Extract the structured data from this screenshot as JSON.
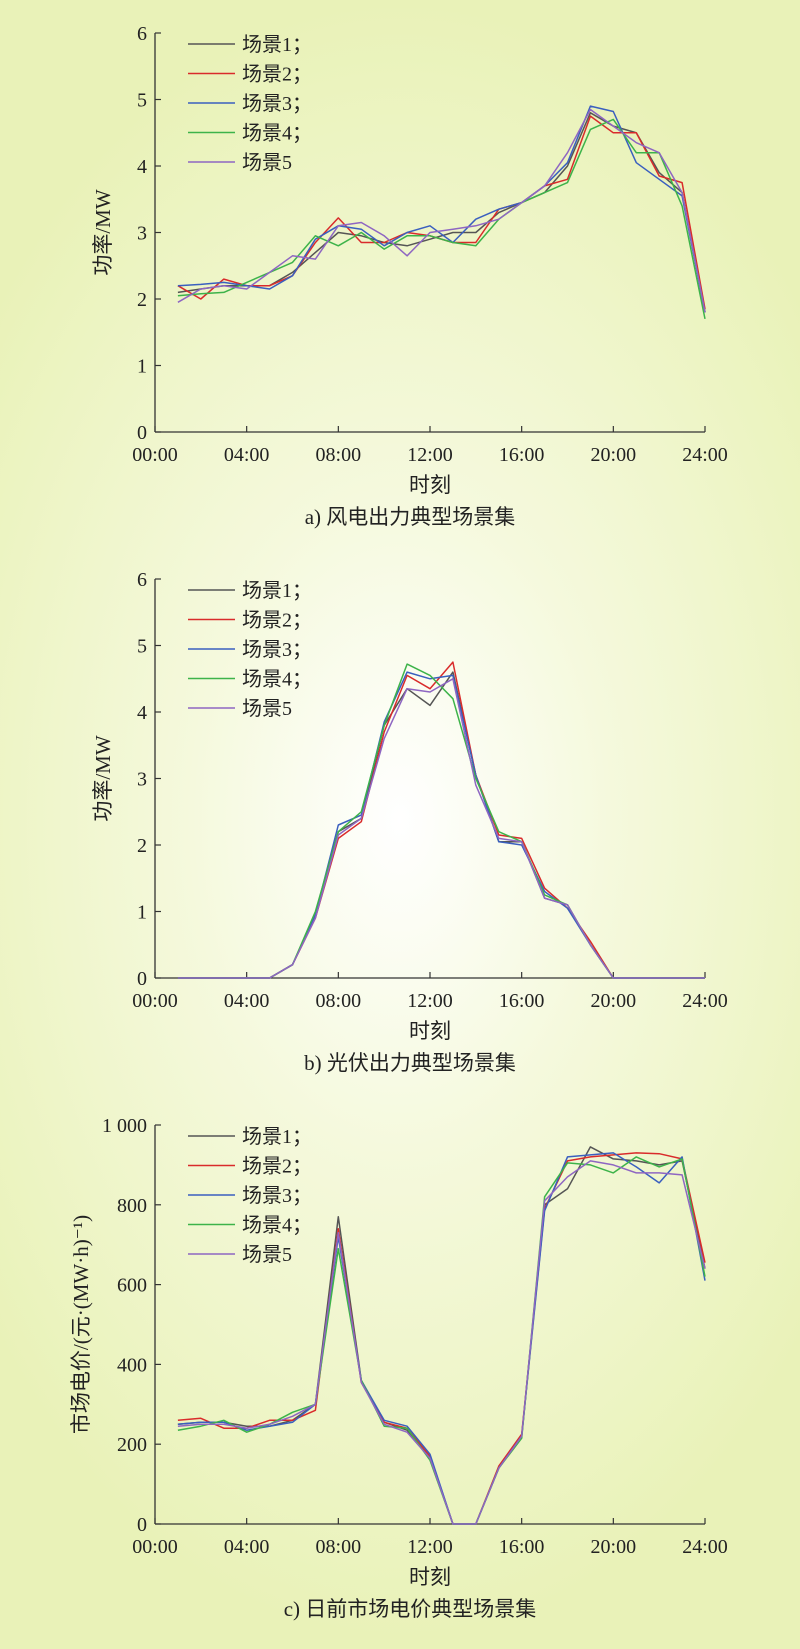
{
  "colors": {
    "series": [
      "#555555",
      "#d92b2b",
      "#3a5fbf",
      "#3db34a",
      "#8e66c2"
    ]
  },
  "chart_data": [
    {
      "type": "line",
      "caption": "a) 风电出力典型场景集",
      "xlabel": "时刻",
      "ylabel": "功率/MW",
      "xlim": [
        0,
        24
      ],
      "ylim": [
        0,
        6
      ],
      "xticks": [
        0,
        4,
        8,
        12,
        16,
        20,
        24
      ],
      "xtick_labels": [
        "00:00",
        "04:00",
        "08:00",
        "12:00",
        "16:00",
        "20:00",
        "24:00"
      ],
      "yticks": [
        0,
        1,
        2,
        3,
        4,
        5,
        6
      ],
      "ytick_labels": [
        "0",
        "1",
        "2",
        "3",
        "4",
        "5",
        "6"
      ],
      "legend_position": "top-left",
      "x": [
        1,
        2,
        3,
        4,
        5,
        6,
        7,
        8,
        9,
        10,
        11,
        12,
        13,
        14,
        15,
        16,
        17,
        18,
        19,
        20,
        21,
        22,
        23,
        24
      ],
      "series": [
        {
          "name": "场景1；",
          "values": [
            2.1,
            2.15,
            2.2,
            2.2,
            2.2,
            2.4,
            2.7,
            3.0,
            2.95,
            2.85,
            2.8,
            2.9,
            3.0,
            3.0,
            3.3,
            3.45,
            3.6,
            4.0,
            4.8,
            4.6,
            4.5,
            3.9,
            3.6,
            1.8
          ]
        },
        {
          "name": "场景2；",
          "values": [
            2.2,
            2.0,
            2.3,
            2.2,
            2.2,
            2.35,
            2.85,
            3.22,
            2.85,
            2.85,
            3.0,
            2.95,
            2.85,
            2.85,
            3.35,
            3.45,
            3.7,
            3.8,
            4.75,
            4.5,
            4.5,
            3.85,
            3.75,
            1.85
          ]
        },
        {
          "name": "场景3；",
          "values": [
            2.2,
            2.22,
            2.25,
            2.2,
            2.15,
            2.35,
            2.9,
            3.1,
            3.05,
            2.8,
            3.0,
            3.1,
            2.85,
            3.2,
            3.35,
            3.45,
            3.7,
            4.05,
            4.9,
            4.82,
            4.05,
            3.8,
            3.55,
            1.8
          ]
        },
        {
          "name": "场景4；",
          "values": [
            2.05,
            2.08,
            2.1,
            2.25,
            2.4,
            2.55,
            2.95,
            2.8,
            3.0,
            2.75,
            2.95,
            2.95,
            2.85,
            2.8,
            3.2,
            3.45,
            3.6,
            3.75,
            4.55,
            4.7,
            4.2,
            4.2,
            3.4,
            1.7
          ]
        },
        {
          "name": "场景5",
          "values": [
            1.95,
            2.15,
            2.2,
            2.15,
            2.4,
            2.65,
            2.6,
            3.1,
            3.15,
            2.95,
            2.65,
            3.0,
            3.05,
            3.1,
            3.2,
            3.45,
            3.7,
            4.2,
            4.85,
            4.6,
            4.35,
            4.2,
            3.6,
            1.8
          ]
        }
      ]
    },
    {
      "type": "line",
      "caption": "b) 光伏出力典型场景集",
      "xlabel": "时刻",
      "ylabel": "功率/MW",
      "xlim": [
        0,
        24
      ],
      "ylim": [
        0,
        6
      ],
      "xticks": [
        0,
        4,
        8,
        12,
        16,
        20,
        24
      ],
      "xtick_labels": [
        "00:00",
        "04:00",
        "08:00",
        "12:00",
        "16:00",
        "20:00",
        "24:00"
      ],
      "yticks": [
        0,
        1,
        2,
        3,
        4,
        5,
        6
      ],
      "ytick_labels": [
        "0",
        "1",
        "2",
        "3",
        "4",
        "5",
        "6"
      ],
      "legend_position": "top-left",
      "x": [
        1,
        2,
        3,
        4,
        5,
        6,
        7,
        8,
        9,
        10,
        11,
        12,
        13,
        14,
        15,
        16,
        17,
        18,
        19,
        20,
        21,
        22,
        23,
        24
      ],
      "series": [
        {
          "name": "场景1；",
          "values": [
            0,
            0,
            0,
            0,
            0,
            0.2,
            0.95,
            2.2,
            2.4,
            3.8,
            4.35,
            4.1,
            4.6,
            3.05,
            2.05,
            2.05,
            1.2,
            1.1,
            0.5,
            0,
            0,
            0,
            0,
            0
          ]
        },
        {
          "name": "场景2；",
          "values": [
            0,
            0,
            0,
            0,
            0,
            0.2,
            0.9,
            2.1,
            2.35,
            3.7,
            4.55,
            4.35,
            4.75,
            3.05,
            2.15,
            2.1,
            1.35,
            1.05,
            0.55,
            0,
            0,
            0,
            0,
            0
          ]
        },
        {
          "name": "场景3；",
          "values": [
            0,
            0,
            0,
            0,
            0,
            0.2,
            0.95,
            2.3,
            2.45,
            3.85,
            4.6,
            4.5,
            4.55,
            3.05,
            2.05,
            2.0,
            1.3,
            1.05,
            0.5,
            0,
            0,
            0,
            0,
            0
          ]
        },
        {
          "name": "场景4；",
          "values": [
            0,
            0,
            0,
            0,
            0,
            0.2,
            1.0,
            2.2,
            2.5,
            3.8,
            4.72,
            4.55,
            4.2,
            3.0,
            2.2,
            2.05,
            1.25,
            1.1,
            0.5,
            0,
            0,
            0,
            0,
            0
          ]
        },
        {
          "name": "场景5",
          "values": [
            0,
            0,
            0,
            0,
            0,
            0.2,
            0.9,
            2.15,
            2.4,
            3.6,
            4.35,
            4.3,
            4.5,
            2.9,
            2.1,
            2.05,
            1.2,
            1.1,
            0.5,
            0,
            0,
            0,
            0,
            0
          ]
        }
      ]
    },
    {
      "type": "line",
      "caption": "c) 日前市场电价典型场景集",
      "xlabel": "时刻",
      "ylabel": "市场电价/(元·(MW·h)⁻¹)",
      "xlim": [
        0,
        24
      ],
      "ylim": [
        0,
        1000
      ],
      "xticks": [
        0,
        4,
        8,
        12,
        16,
        20,
        24
      ],
      "xtick_labels": [
        "00:00",
        "04:00",
        "08:00",
        "12:00",
        "16:00",
        "20:00",
        "24:00"
      ],
      "yticks": [
        0,
        200,
        400,
        600,
        800,
        1000
      ],
      "ytick_labels": [
        "0",
        "200",
        "400",
        "600",
        "800",
        "1 000"
      ],
      "legend_position": "top-left",
      "x": [
        1,
        2,
        3,
        4,
        5,
        6,
        7,
        8,
        9,
        10,
        11,
        12,
        13,
        14,
        15,
        16,
        17,
        18,
        19,
        20,
        21,
        22,
        23,
        24
      ],
      "series": [
        {
          "name": "场景1；",
          "values": [
            250,
            255,
            255,
            245,
            245,
            260,
            300,
            770,
            360,
            255,
            235,
            165,
            0,
            0,
            140,
            220,
            800,
            840,
            945,
            915,
            910,
            900,
            910,
            640
          ]
        },
        {
          "name": "场景2；",
          "values": [
            260,
            265,
            240,
            240,
            260,
            260,
            285,
            740,
            355,
            255,
            240,
            170,
            0,
            0,
            145,
            225,
            790,
            910,
            920,
            925,
            930,
            928,
            915,
            655
          ]
        },
        {
          "name": "场景3；",
          "values": [
            250,
            255,
            255,
            235,
            245,
            255,
            300,
            720,
            360,
            260,
            245,
            175,
            0,
            0,
            140,
            220,
            785,
            920,
            925,
            930,
            895,
            855,
            920,
            610
          ]
        },
        {
          "name": "场景4；",
          "values": [
            235,
            245,
            260,
            230,
            250,
            280,
            300,
            690,
            360,
            245,
            240,
            160,
            0,
            0,
            140,
            215,
            820,
            905,
            900,
            880,
            920,
            895,
            915,
            620
          ]
        },
        {
          "name": "场景5",
          "values": [
            245,
            250,
            250,
            240,
            250,
            270,
            300,
            730,
            355,
            250,
            230,
            165,
            0,
            0,
            140,
            220,
            810,
            870,
            910,
            900,
            880,
            880,
            875,
            640
          ]
        }
      ]
    }
  ]
}
